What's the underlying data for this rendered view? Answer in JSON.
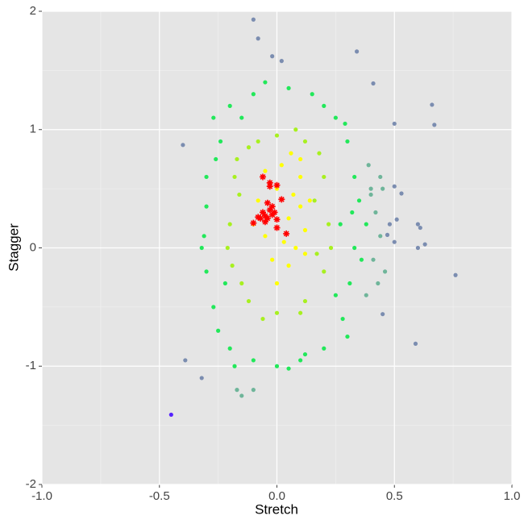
{
  "chart_data": {
    "type": "scatter",
    "x_label": "Stretch",
    "y_label": "Stagger",
    "xlim": [
      -1,
      1
    ],
    "ylim": [
      -2,
      2
    ],
    "xticks": [
      {
        "value": -1,
        "label": "-1.0"
      },
      -0.5,
      {
        "value": 0,
        "label": "0.0"
      },
      0.5,
      {
        "value": 1,
        "label": "1.0"
      }
    ],
    "yticks": [
      -2,
      -1,
      0,
      1,
      2
    ],
    "grid": true,
    "series": [
      {
        "color": "#22e85a",
        "marker": "o",
        "x": [
          -0.3,
          -0.27,
          -0.2,
          -0.1,
          0.05,
          0.15,
          0.25,
          0.3,
          0.33,
          0.32,
          0.33,
          0.31,
          0.28,
          0.2,
          0.1,
          0.0,
          -0.1,
          -0.2,
          -0.27,
          -0.3,
          -0.31,
          -0.3,
          -0.24,
          0.2,
          0.35,
          0.36,
          -0.25,
          0.05,
          -0.05,
          0.29,
          -0.22,
          0.27,
          0.25,
          -0.26,
          0.12,
          -0.15,
          0.3,
          -0.18,
          0.38,
          -0.32
        ],
        "values": [
          0.6,
          1.1,
          1.2,
          1.3,
          1.35,
          1.3,
          1.1,
          0.9,
          0.6,
          0.3,
          0.0,
          -0.3,
          -0.6,
          -0.85,
          -0.95,
          -1.0,
          -0.95,
          -0.85,
          -0.5,
          -0.2,
          0.1,
          0.35,
          0.9,
          1.2,
          0.4,
          -0.1,
          -0.7,
          -1.02,
          1.4,
          1.05,
          -0.3,
          0.2,
          -0.4,
          0.75,
          -0.9,
          1.1,
          -0.75,
          -1.0,
          0.2,
          0.0
        ]
      },
      {
        "color": "#a8f020",
        "marker": "o",
        "x": [
          -0.2,
          -0.18,
          -0.12,
          0,
          0.12,
          0.2,
          0.22,
          0.2,
          0.12,
          0,
          -0.12,
          -0.19,
          -0.16,
          0.16,
          0.17,
          -0.15,
          0.08,
          -0.06,
          0.23,
          -0.21,
          0.18,
          -0.17,
          0.1,
          -0.08
        ],
        "values": [
          0.2,
          0.6,
          0.85,
          0.95,
          0.9,
          0.6,
          0.2,
          -0.2,
          -0.45,
          -0.55,
          -0.45,
          -0.15,
          0.45,
          0.4,
          -0.05,
          -0.3,
          1.0,
          -0.6,
          0.0,
          0.0,
          0.8,
          0.75,
          -0.55,
          0.9
        ]
      },
      {
        "color": "#ffff00",
        "marker": "o",
        "x": [
          0.05,
          0.1,
          0.0,
          -0.05,
          0.08,
          0.12,
          -0.08,
          0.02,
          0.1,
          -0.1,
          0.05,
          0.0,
          0.14,
          -0.05,
          0.07,
          0.03,
          -0.02,
          0.12,
          0.06,
          0.1
        ],
        "values": [
          0.25,
          0.35,
          0.5,
          0.1,
          0.0,
          0.15,
          0.4,
          0.7,
          0.6,
          0.2,
          -0.15,
          -0.3,
          0.4,
          0.65,
          0.45,
          0.05,
          -0.1,
          -0.05,
          0.8,
          0.75
        ]
      },
      {
        "color": "#6fb59a",
        "marker": "o",
        "x": [
          0.4,
          0.42,
          0.44,
          0.41,
          0.43,
          0.4,
          0.45,
          0.38,
          0.46,
          -0.17,
          -0.15,
          -0.1,
          0.44,
          0.39
        ],
        "values": [
          0.45,
          0.3,
          0.1,
          -0.1,
          -0.3,
          0.5,
          0.5,
          -0.4,
          -0.2,
          -1.2,
          -1.25,
          -1.2,
          0.6,
          0.7
        ]
      },
      {
        "color": "#7b8db0",
        "marker": "o",
        "x": [
          -0.1,
          -0.08,
          -0.02,
          0.02,
          0.34,
          0.41,
          0.5,
          0.66,
          0.67,
          -0.4,
          0.5,
          0.53,
          0.6,
          0.61,
          0.63,
          0.6,
          0.59,
          0.45,
          0.76,
          -0.39,
          -0.32,
          0.51,
          0.5,
          0.48,
          0.47
        ],
        "values": [
          1.93,
          1.77,
          1.62,
          1.58,
          1.66,
          1.39,
          1.05,
          1.21,
          1.04,
          0.87,
          0.52,
          0.46,
          0.2,
          0.17,
          0.03,
          0.0,
          -0.81,
          -0.56,
          -0.23,
          -0.95,
          -1.1,
          0.24,
          0.05,
          0.2,
          0.11
        ]
      },
      {
        "color": "#5522ff",
        "marker": "o",
        "x": [
          -0.45
        ],
        "values": [
          -1.41
        ]
      },
      {
        "color": "#ff0000",
        "marker": "*",
        "x": [
          -0.06,
          -0.03,
          -0.03,
          0.0,
          -0.04,
          0.02,
          -0.06,
          -0.05,
          -0.04,
          -0.03,
          -0.02,
          -0.01,
          -0.07,
          -0.05,
          0.0,
          -0.02,
          -0.1,
          0.0,
          0.04,
          -0.08
        ],
        "values": [
          0.6,
          0.55,
          0.52,
          0.53,
          0.38,
          0.41,
          0.3,
          0.27,
          0.25,
          0.32,
          0.35,
          0.3,
          0.25,
          0.22,
          0.24,
          0.28,
          0.21,
          0.17,
          0.12,
          0.26
        ]
      }
    ]
  }
}
